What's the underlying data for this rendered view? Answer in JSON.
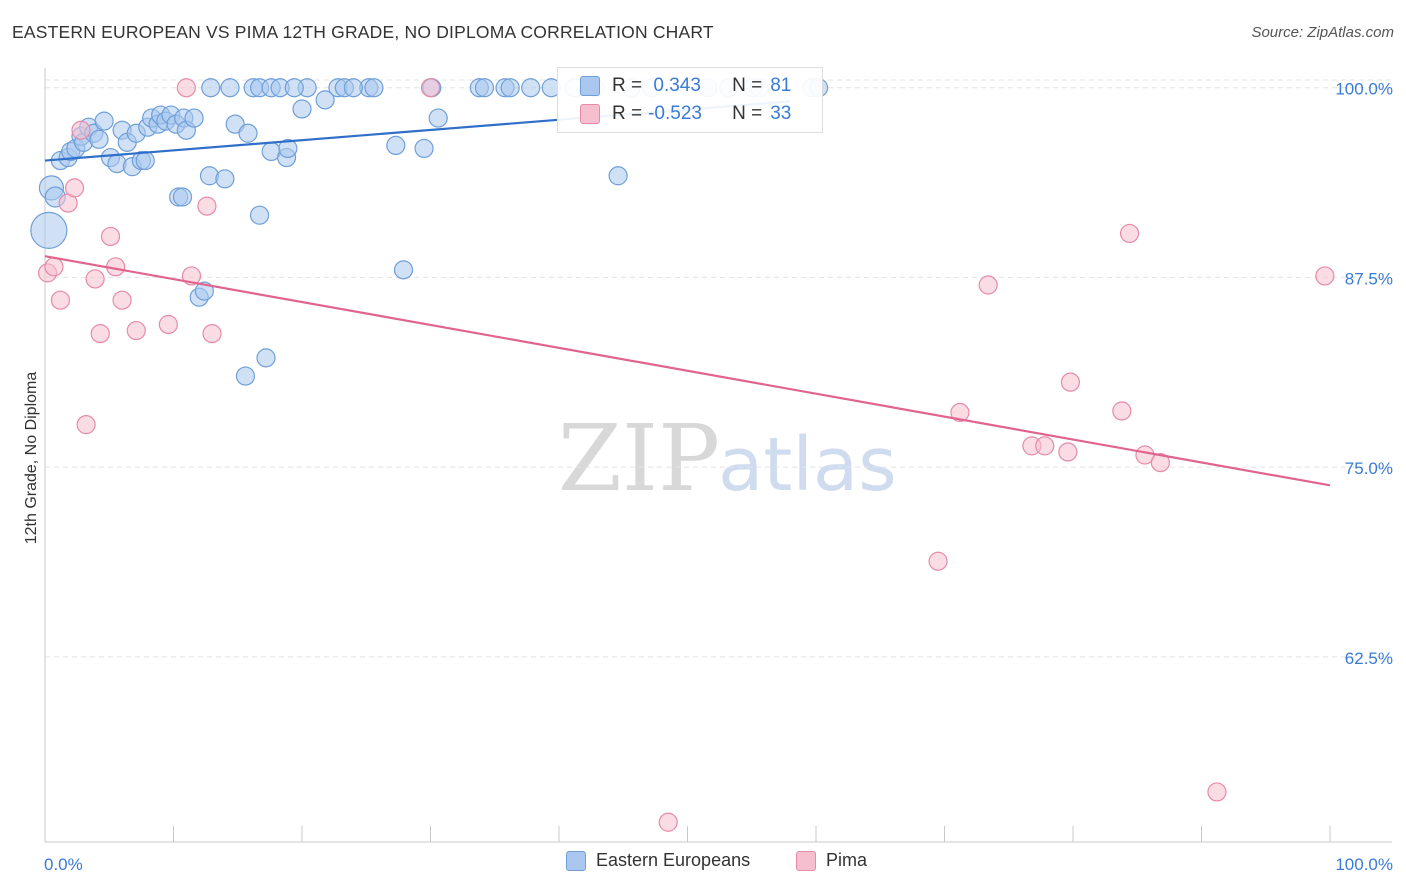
{
  "header": {
    "title": "EASTERN EUROPEAN VS PIMA 12TH GRADE, NO DIPLOMA CORRELATION CHART",
    "source": "Source: ZipAtlas.com"
  },
  "watermark": {
    "zip": "ZIP",
    "atlas": "atlas"
  },
  "colors": {
    "blue_fill": "#aac8ef",
    "blue_stroke": "#6f9fd8",
    "blue_line": "#2f6fc9",
    "pink_fill": "#f6bfd0",
    "pink_stroke": "#e68aa8",
    "pink_line": "#e0648e",
    "axis_text": "#3a7bd5",
    "grid": "#e3e3e3"
  },
  "legend_box": {
    "rows": [
      {
        "r_label": "R =",
        "r_value": " 0.343",
        "n_label": "N =",
        "n_value": "81"
      },
      {
        "r_label": "R =",
        "r_value": "-0.523",
        "n_label": "N =",
        "n_value": "33"
      }
    ]
  },
  "chart_data": {
    "type": "scatter",
    "title": "EASTERN EUROPEAN VS PIMA 12TH GRADE, NO DIPLOMA CORRELATION CHART",
    "xlabel": "",
    "ylabel": "12th Grade, No Diploma",
    "xlim": [
      0,
      100
    ],
    "ylim": [
      50.3,
      101.3
    ],
    "x_tick_labels": [
      "0.0%",
      "100.0%"
    ],
    "y_ticks": [
      100.0,
      87.5,
      75.0,
      62.5
    ],
    "y_tick_labels": [
      "100.0%",
      "87.5%",
      "75.0%",
      "62.5%"
    ],
    "grid": true,
    "legend": [
      "Eastern Europeans",
      "Pima"
    ],
    "series": [
      {
        "name": "Eastern Europeans",
        "trendline": {
          "x": [
            0,
            58.0
          ],
          "y": [
            95.2,
            99.1
          ]
        },
        "points": [
          {
            "x": 0.3,
            "y": 90.6,
            "s": 18
          },
          {
            "x": 0.5,
            "y": 93.4,
            "s": 12
          },
          {
            "x": 0.8,
            "y": 92.8,
            "s": 10
          },
          {
            "x": 1.2,
            "y": 95.2,
            "s": 9
          },
          {
            "x": 1.8,
            "y": 95.4,
            "s": 9
          },
          {
            "x": 2.0,
            "y": 95.8,
            "s": 9
          },
          {
            "x": 2.4,
            "y": 96.0,
            "s": 9
          },
          {
            "x": 2.8,
            "y": 96.8,
            "s": 9
          },
          {
            "x": 3.0,
            "y": 96.4,
            "s": 9
          },
          {
            "x": 3.4,
            "y": 97.4,
            "s": 9
          },
          {
            "x": 3.8,
            "y": 97.0,
            "s": 9
          },
          {
            "x": 4.2,
            "y": 96.6,
            "s": 9
          },
          {
            "x": 4.6,
            "y": 97.8,
            "s": 9
          },
          {
            "x": 5.1,
            "y": 95.4,
            "s": 9
          },
          {
            "x": 5.6,
            "y": 95.0,
            "s": 9
          },
          {
            "x": 6.0,
            "y": 97.2,
            "s": 9
          },
          {
            "x": 6.4,
            "y": 96.4,
            "s": 9
          },
          {
            "x": 6.8,
            "y": 94.8,
            "s": 9
          },
          {
            "x": 7.1,
            "y": 97.0,
            "s": 9
          },
          {
            "x": 7.5,
            "y": 95.2,
            "s": 9
          },
          {
            "x": 7.8,
            "y": 95.2,
            "s": 9
          },
          {
            "x": 8.0,
            "y": 97.4,
            "s": 9
          },
          {
            "x": 8.3,
            "y": 98.0,
            "s": 9
          },
          {
            "x": 8.8,
            "y": 97.6,
            "s": 9
          },
          {
            "x": 9.0,
            "y": 98.2,
            "s": 9
          },
          {
            "x": 9.4,
            "y": 97.8,
            "s": 9
          },
          {
            "x": 9.8,
            "y": 98.2,
            "s": 9
          },
          {
            "x": 10.2,
            "y": 97.6,
            "s": 9
          },
          {
            "x": 10.8,
            "y": 98.0,
            "s": 9
          },
          {
            "x": 10.4,
            "y": 92.8,
            "s": 9
          },
          {
            "x": 10.7,
            "y": 92.8,
            "s": 9
          },
          {
            "x": 11.0,
            "y": 97.2,
            "s": 9
          },
          {
            "x": 11.6,
            "y": 98.0,
            "s": 9
          },
          {
            "x": 12.0,
            "y": 86.2,
            "s": 9
          },
          {
            "x": 12.4,
            "y": 86.6,
            "s": 9
          },
          {
            "x": 12.8,
            "y": 94.2,
            "s": 9
          },
          {
            "x": 14.0,
            "y": 94.0,
            "s": 9
          },
          {
            "x": 14.8,
            "y": 97.6,
            "s": 9
          },
          {
            "x": 15.8,
            "y": 97.0,
            "s": 9
          },
          {
            "x": 15.6,
            "y": 81.0,
            "s": 9
          },
          {
            "x": 16.7,
            "y": 91.6,
            "s": 9
          },
          {
            "x": 17.2,
            "y": 82.2,
            "s": 9
          },
          {
            "x": 17.6,
            "y": 95.8,
            "s": 9
          },
          {
            "x": 18.8,
            "y": 95.4,
            "s": 9
          },
          {
            "x": 18.9,
            "y": 96.0,
            "s": 9
          },
          {
            "x": 20.0,
            "y": 98.6,
            "s": 9
          },
          {
            "x": 21.8,
            "y": 99.2,
            "s": 9
          },
          {
            "x": 27.3,
            "y": 96.2,
            "s": 9
          },
          {
            "x": 27.9,
            "y": 88.0,
            "s": 9
          },
          {
            "x": 29.5,
            "y": 96.0,
            "s": 9
          },
          {
            "x": 30.6,
            "y": 98.0,
            "s": 9
          },
          {
            "x": 44.6,
            "y": 94.2,
            "s": 9
          },
          {
            "x": 12.9,
            "y": 100.0,
            "s": 9
          },
          {
            "x": 14.4,
            "y": 100.0,
            "s": 9
          },
          {
            "x": 16.2,
            "y": 100.0,
            "s": 9
          },
          {
            "x": 16.7,
            "y": 100.0,
            "s": 9
          },
          {
            "x": 17.6,
            "y": 100.0,
            "s": 9
          },
          {
            "x": 18.3,
            "y": 100.0,
            "s": 9
          },
          {
            "x": 20.4,
            "y": 100.0,
            "s": 9
          },
          {
            "x": 22.8,
            "y": 100.0,
            "s": 9
          },
          {
            "x": 23.3,
            "y": 100.0,
            "s": 9
          },
          {
            "x": 25.2,
            "y": 100.0,
            "s": 9
          },
          {
            "x": 25.6,
            "y": 100.0,
            "s": 9
          },
          {
            "x": 30.1,
            "y": 100.0,
            "s": 9
          },
          {
            "x": 33.8,
            "y": 100.0,
            "s": 9
          },
          {
            "x": 34.2,
            "y": 100.0,
            "s": 9
          },
          {
            "x": 35.8,
            "y": 100.0,
            "s": 9
          },
          {
            "x": 36.2,
            "y": 100.0,
            "s": 9
          },
          {
            "x": 37.8,
            "y": 100.0,
            "s": 9
          },
          {
            "x": 39.4,
            "y": 100.0,
            "s": 9
          },
          {
            "x": 41.2,
            "y": 100.0,
            "s": 9
          },
          {
            "x": 42.8,
            "y": 100.0,
            "s": 9
          },
          {
            "x": 47.2,
            "y": 100.0,
            "s": 9
          },
          {
            "x": 51.6,
            "y": 100.0,
            "s": 9
          },
          {
            "x": 55.1,
            "y": 100.0,
            "s": 9
          },
          {
            "x": 55.6,
            "y": 100.0,
            "s": 9
          },
          {
            "x": 59.7,
            "y": 100.0,
            "s": 9
          },
          {
            "x": 60.2,
            "y": 100.0,
            "s": 9
          },
          {
            "x": 45.6,
            "y": 100.0,
            "s": 9
          },
          {
            "x": 53.2,
            "y": 100.0,
            "s": 9
          },
          {
            "x": 24.0,
            "y": 100.0,
            "s": 9
          },
          {
            "x": 19.4,
            "y": 100.0,
            "s": 9
          }
        ]
      },
      {
        "name": "Pima",
        "trendline": {
          "x": [
            0,
            100
          ],
          "y": [
            88.9,
            73.8
          ]
        },
        "points": [
          {
            "x": 0.2,
            "y": 87.8,
            "s": 9
          },
          {
            "x": 0.7,
            "y": 88.2,
            "s": 9
          },
          {
            "x": 1.2,
            "y": 86.0,
            "s": 9
          },
          {
            "x": 1.8,
            "y": 92.4,
            "s": 9
          },
          {
            "x": 2.3,
            "y": 93.4,
            "s": 9
          },
          {
            "x": 2.8,
            "y": 97.2,
            "s": 9
          },
          {
            "x": 3.2,
            "y": 77.8,
            "s": 9
          },
          {
            "x": 3.9,
            "y": 87.4,
            "s": 9
          },
          {
            "x": 4.3,
            "y": 83.8,
            "s": 9
          },
          {
            "x": 5.1,
            "y": 90.2,
            "s": 9
          },
          {
            "x": 5.5,
            "y": 88.2,
            "s": 9
          },
          {
            "x": 6.0,
            "y": 86.0,
            "s": 9
          },
          {
            "x": 7.1,
            "y": 84.0,
            "s": 9
          },
          {
            "x": 9.6,
            "y": 84.4,
            "s": 9
          },
          {
            "x": 11.0,
            "y": 100.0,
            "s": 9
          },
          {
            "x": 11.4,
            "y": 87.6,
            "s": 9
          },
          {
            "x": 12.6,
            "y": 92.2,
            "s": 9
          },
          {
            "x": 13.0,
            "y": 83.8,
            "s": 9
          },
          {
            "x": 30.0,
            "y": 100.0,
            "s": 9
          },
          {
            "x": 48.5,
            "y": 51.6,
            "s": 9
          },
          {
            "x": 69.5,
            "y": 68.8,
            "s": 9
          },
          {
            "x": 71.2,
            "y": 78.6,
            "s": 9
          },
          {
            "x": 73.4,
            "y": 87.0,
            "s": 9
          },
          {
            "x": 76.8,
            "y": 76.4,
            "s": 9
          },
          {
            "x": 77.8,
            "y": 76.4,
            "s": 9
          },
          {
            "x": 79.6,
            "y": 76.0,
            "s": 9
          },
          {
            "x": 79.8,
            "y": 80.6,
            "s": 9
          },
          {
            "x": 83.8,
            "y": 78.7,
            "s": 9
          },
          {
            "x": 84.4,
            "y": 90.4,
            "s": 9
          },
          {
            "x": 85.6,
            "y": 75.8,
            "s": 9
          },
          {
            "x": 86.8,
            "y": 75.3,
            "s": 9
          },
          {
            "x": 91.2,
            "y": 53.6,
            "s": 9
          },
          {
            "x": 99.6,
            "y": 87.6,
            "s": 9
          }
        ]
      }
    ]
  }
}
